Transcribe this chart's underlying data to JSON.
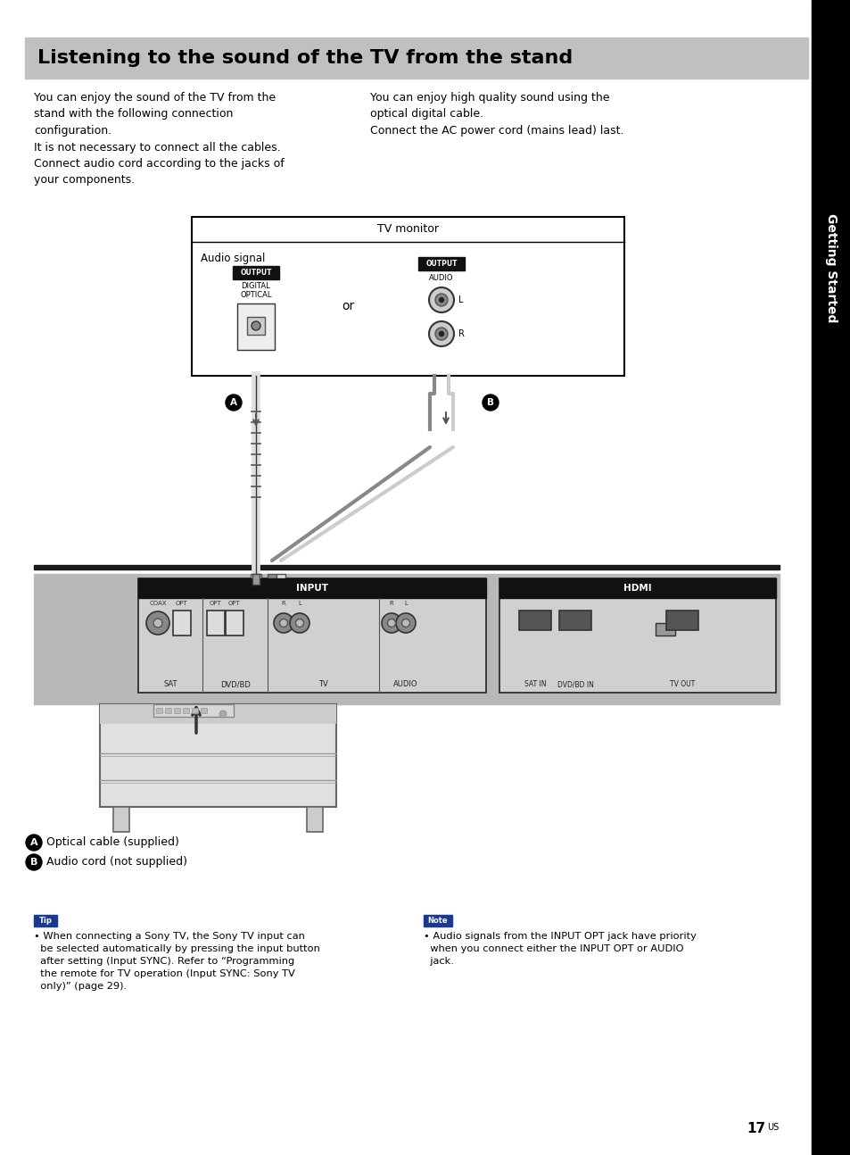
{
  "page_bg": "#ffffff",
  "title_text": "Listening to the sound of the TV from the stand",
  "title_bg": "#c0c0c0",
  "title_color": "#000000",
  "sidebar_text": "Getting Started",
  "sidebar_bg": "#000000",
  "sidebar_color": "#ffffff",
  "body_left_text": "You can enjoy the sound of the TV from the\nstand with the following connection\nconfiguration.\nIt is not necessary to connect all the cables.\nConnect audio cord according to the jacks of\nyour components.",
  "body_right_text": "You can enjoy high quality sound using the\noptical digital cable.\nConnect the AC power cord (mains lead) last.",
  "tip_label": "Tip",
  "tip_label_bg": "#1a3a8f",
  "tip_text": "• When connecting a Sony TV, the Sony TV input can\n  be selected automatically by pressing the input button\n  after setting (Input SYNC). Refer to “Programming\n  the remote for TV operation (Input SYNC: Sony TV\n  only)” (page 29).",
  "note_label": "Note",
  "note_label_bg": "#1a3a8f",
  "note_text": "• Audio signals from the INPUT OPT jack have priority\n  when you connect either the INPUT OPT or AUDIO\n  jack.",
  "legend_a": "Optical cable (supplied)",
  "legend_b": "Audio cord (not supplied)",
  "page_number": "17",
  "page_number_super": "US"
}
